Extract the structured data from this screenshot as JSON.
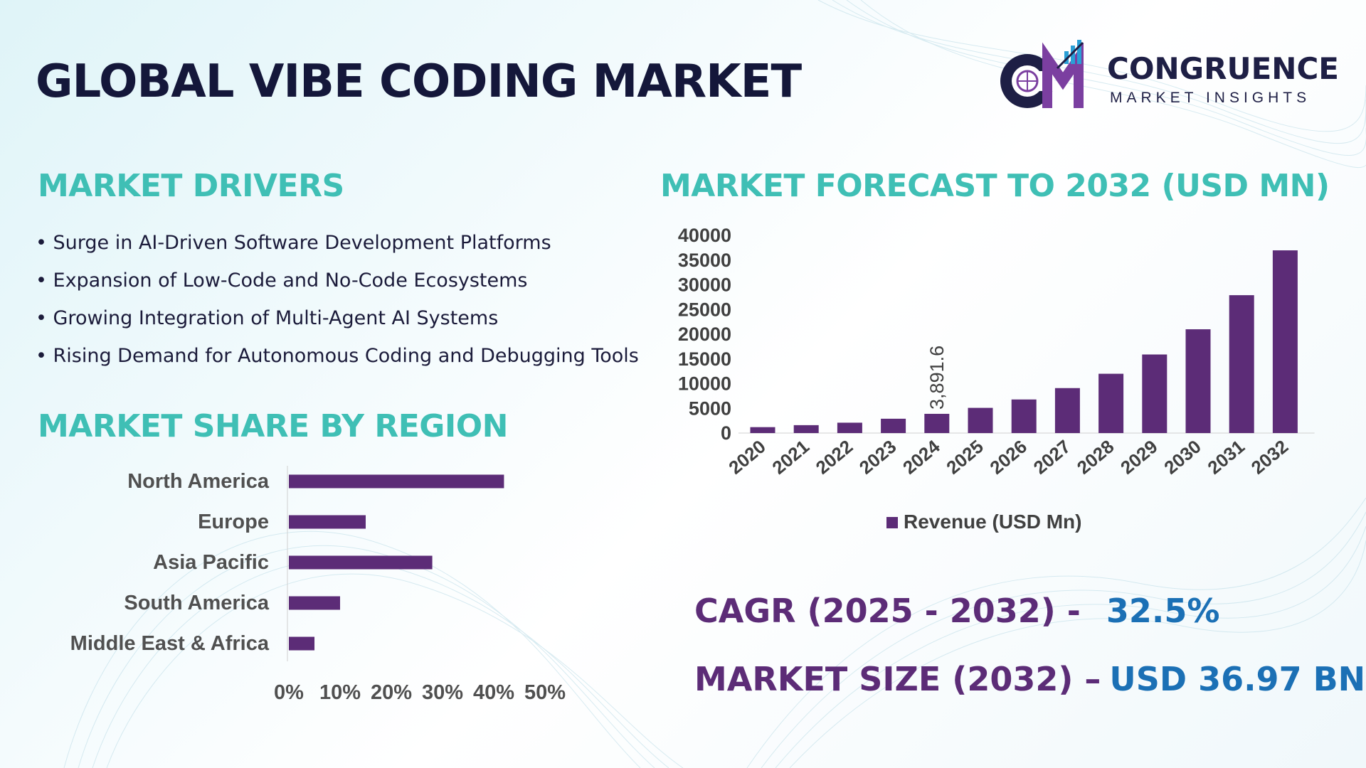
{
  "header": {
    "title": "GLOBAL VIBE CODING MARKET",
    "logo_name": "CONGRUENCE",
    "logo_tagline": "MARKET INSIGHTS"
  },
  "drivers": {
    "title": "MARKET DRIVERS",
    "items": [
      "• Surge in AI-Driven Software Development Platforms",
      "• Expansion of Low-Code and No-Code Ecosystems",
      "• Growing Integration of Multi-Agent AI Systems",
      "• Rising Demand for Autonomous Coding and Debugging Tools"
    ]
  },
  "region": {
    "title": "MARKET SHARE BY REGION"
  },
  "forecast": {
    "title": "MARKET FORECAST TO 2032 (USD MN)"
  },
  "stats": {
    "cagr_label": "CAGR (2025 - 2032) -",
    "cagr_value": "32.5%",
    "size_label": "MARKET SIZE (2032) –",
    "size_value": "USD 36.97 BN"
  },
  "colors": {
    "bar": "#5c2c77",
    "title_teal": "#3fbfb5",
    "value_blue": "#1b70b5",
    "text_dark": "#14173a"
  },
  "chart_data": [
    {
      "type": "bar",
      "orientation": "vertical",
      "categories": [
        "2020",
        "2021",
        "2022",
        "2023",
        "2024",
        "2025",
        "2026",
        "2027",
        "2028",
        "2029",
        "2030",
        "2031",
        "2032"
      ],
      "series": [
        {
          "name": "Revenue (USD Mn)",
          "values": [
            1200,
            1600,
            2100,
            2900,
            3891.6,
            5100,
            6800,
            9100,
            12000,
            15900,
            21000,
            27900,
            36970
          ]
        }
      ],
      "data_labels": [
        {
          "index": 4,
          "text": "3,891.6"
        }
      ],
      "yticks": [
        "40000",
        "35000",
        "30000",
        "25000",
        "20000",
        "15000",
        "10000",
        "5000",
        "0"
      ],
      "ylim": [
        0,
        40000
      ],
      "legend": "bottom"
    },
    {
      "type": "bar",
      "orientation": "horizontal",
      "categories": [
        "North America",
        "Europe",
        "Asia Pacific",
        "South America",
        "Middle East & Africa"
      ],
      "values": [
        42,
        15,
        28,
        10,
        5
      ],
      "xticks": [
        "0%",
        "10%",
        "20%",
        "30%",
        "40%",
        "50%"
      ],
      "xlim": [
        0,
        50
      ]
    }
  ]
}
